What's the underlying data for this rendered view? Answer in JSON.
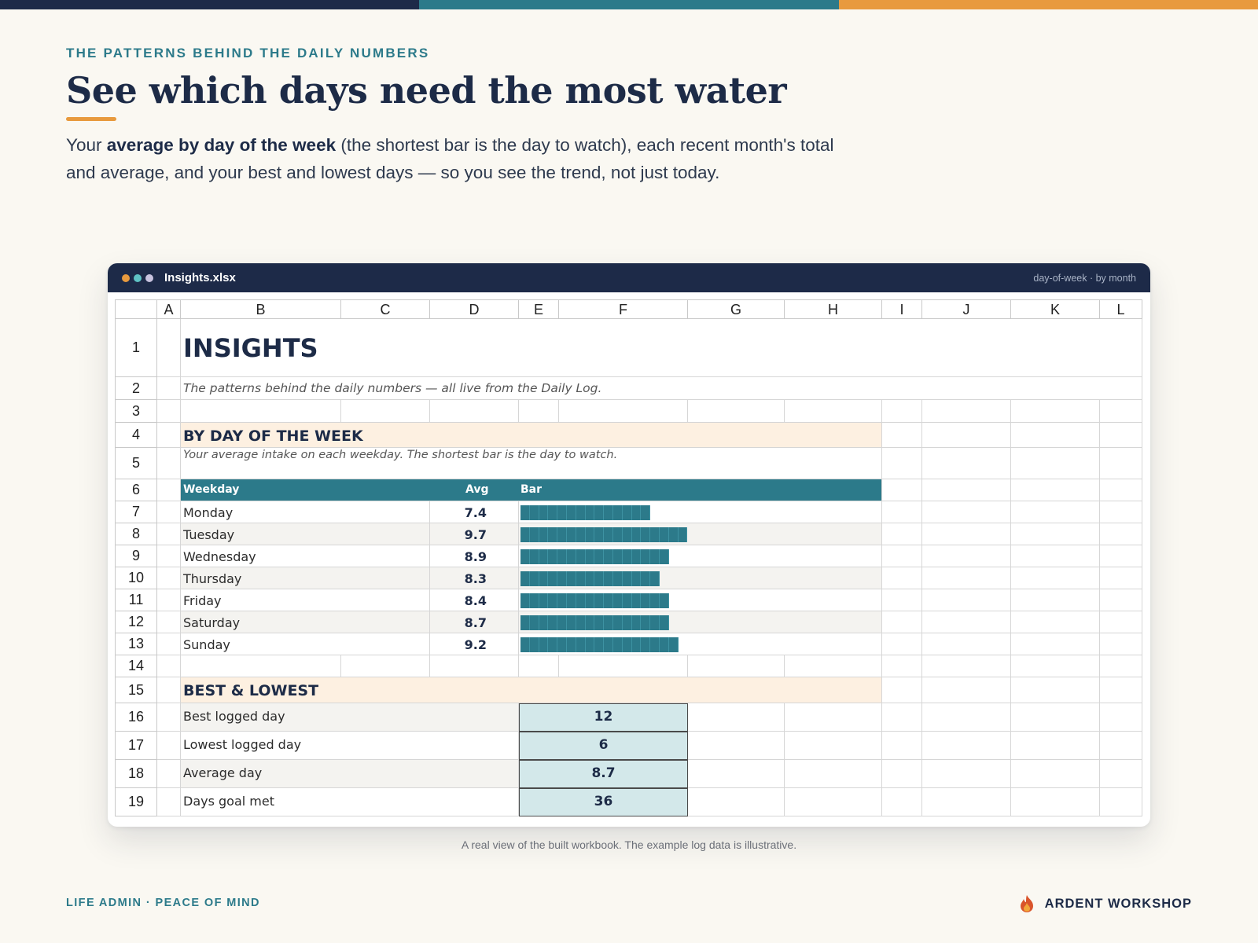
{
  "page": {
    "topbar_colors": [
      "#1d2a48",
      "#2c7a8a",
      "#e89a3e"
    ],
    "eyebrow": "THE PATTERNS BEHIND THE DAILY NUMBERS",
    "headline": "See which days need the most water",
    "lede_1": "Your ",
    "lede_bold": "average by day of the week",
    "lede_2": " (the shortest bar is the day to watch), each recent month's total and average, and your best and lowest days — so you see the trend, not just today.",
    "caption": "A real view of the built workbook. The example log data is illustrative.",
    "footer_left": "LIFE ADMIN · PEACE OF MIND",
    "brand": "ARDENT WORKSHOP",
    "brand_icon": "flame-icon"
  },
  "window": {
    "dots": [
      "#e89a3e",
      "#5fc2c4",
      "#c8c3df"
    ],
    "filename": "Insights.xlsx",
    "right_label": "day-of-week · by month"
  },
  "sheet": {
    "columns": [
      "A",
      "B",
      "C",
      "D",
      "E",
      "F",
      "G",
      "H",
      "I",
      "J",
      "K",
      "L"
    ],
    "rows": [
      "1",
      "2",
      "3",
      "4",
      "5",
      "6",
      "7",
      "8",
      "9",
      "10",
      "11",
      "12",
      "13",
      "14",
      "15",
      "16",
      "17",
      "18",
      "19"
    ],
    "title": "INSIGHTS",
    "subtitle": "The patterns behind the daily numbers — all live from the Daily Log.",
    "section1_title": "BY DAY OF THE WEEK",
    "section1_note": "Your average intake on each weekday. The shortest bar is the day to watch.",
    "header_weekday": "Weekday",
    "header_avg": "Avg",
    "header_bar": "Bar",
    "weekdays": [
      {
        "day": "Monday",
        "avg": "7.4",
        "blocks": 14
      },
      {
        "day": "Tuesday",
        "avg": "9.7",
        "blocks": 18
      },
      {
        "day": "Wednesday",
        "avg": "8.9",
        "blocks": 16
      },
      {
        "day": "Thursday",
        "avg": "8.3",
        "blocks": 15
      },
      {
        "day": "Friday",
        "avg": "8.4",
        "blocks": 16
      },
      {
        "day": "Saturday",
        "avg": "8.7",
        "blocks": 16
      },
      {
        "day": "Sunday",
        "avg": "9.2",
        "blocks": 17
      }
    ],
    "section2_title": "BEST & LOWEST",
    "stats": [
      {
        "label": "Best logged day",
        "value": "12"
      },
      {
        "label": "Lowest logged day",
        "value": "6"
      },
      {
        "label": "Average day",
        "value": "8.7"
      },
      {
        "label": "Days goal met",
        "value": "36"
      }
    ],
    "colors": {
      "accent_teal": "#2c7a8a",
      "section_band": "#fdf0e1",
      "stat_fill": "#d3e8ea",
      "stripe": "#f4f3f0"
    }
  }
}
